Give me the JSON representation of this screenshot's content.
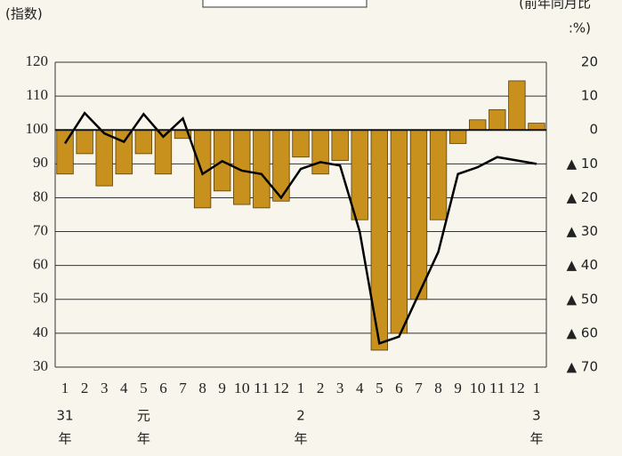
{
  "chart_data": {
    "type": "bar_line",
    "y_label": "(指数)",
    "y2_label": [
      "(前年同月比",
      ":%)"
    ],
    "categories": [
      "1",
      "2",
      "3",
      "4",
      "5",
      "6",
      "7",
      "8",
      "9",
      "10",
      "11",
      "12",
      "1",
      "2",
      "3",
      "4",
      "5",
      "6",
      "7",
      "8",
      "9",
      "10",
      "11",
      "12",
      "1"
    ],
    "era_labels": [
      [
        "31",
        "年"
      ],
      null,
      null,
      null,
      [
        "元",
        "年"
      ],
      null,
      null,
      null,
      null,
      null,
      null,
      null,
      [
        "2",
        "年"
      ],
      null,
      null,
      null,
      null,
      null,
      null,
      null,
      null,
      null,
      null,
      null,
      [
        "3",
        "年"
      ]
    ],
    "series": [
      {
        "type": "bar",
        "axis": "y2",
        "color": "#c8911e",
        "values": [
          -13,
          -7,
          -16.5,
          -13,
          -7,
          -13,
          -2.5,
          -23,
          -18,
          -22,
          -23,
          -21,
          -8,
          -13,
          -9,
          -26.5,
          -65,
          -60,
          -50,
          -26.5,
          -4,
          3,
          6,
          14.5,
          2
        ]
      },
      {
        "type": "line",
        "axis": "y",
        "color": "#000000",
        "values": [
          96,
          105,
          99,
          96.5,
          104.7,
          98,
          103.4,
          87,
          90.8,
          88,
          87,
          80,
          88.5,
          90.5,
          89.5,
          70,
          37,
          39,
          51.5,
          64,
          87,
          89,
          92,
          91,
          90
        ]
      }
    ],
    "ylim": [
      30,
      120
    ],
    "yticks": [
      120,
      110,
      100,
      90,
      80,
      70,
      60,
      50,
      40,
      30
    ],
    "y2lim": [
      -70,
      20
    ],
    "y2ticks": [
      20,
      10,
      0,
      {
        "value": -10,
        "label": "▲ 10"
      },
      {
        "value": -20,
        "label": "▲ 20"
      },
      {
        "value": -30,
        "label": "▲ 30"
      },
      {
        "value": -40,
        "label": "▲ 40"
      },
      {
        "value": -50,
        "label": "▲ 50"
      },
      {
        "value": -60,
        "label": "▲ 60"
      },
      {
        "value": -70,
        "label": "▲ 70"
      }
    ],
    "grid": true
  }
}
